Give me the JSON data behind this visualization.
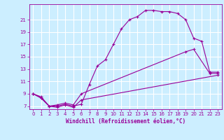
{
  "xlabel": "Windchill (Refroidissement éolien,°C)",
  "background_color": "#cceeff",
  "grid_color": "#ffffff",
  "line_color": "#990099",
  "xlim": [
    -0.5,
    23.5
  ],
  "ylim": [
    6.5,
    23.5
  ],
  "xticks": [
    0,
    1,
    2,
    3,
    4,
    5,
    6,
    7,
    8,
    9,
    10,
    11,
    12,
    13,
    14,
    15,
    16,
    17,
    18,
    19,
    20,
    21,
    22,
    23
  ],
  "yticks": [
    7,
    9,
    11,
    13,
    15,
    17,
    19,
    21
  ],
  "line1_x": [
    0,
    1,
    2,
    3,
    4,
    5,
    6,
    7,
    8,
    9,
    10,
    11,
    12,
    13,
    14,
    15,
    16,
    17,
    18,
    19,
    20,
    21,
    22,
    23
  ],
  "line1_y": [
    9.0,
    8.5,
    7.0,
    7.0,
    7.3,
    7.0,
    7.3,
    10.5,
    13.5,
    14.5,
    17.0,
    19.5,
    21.0,
    21.5,
    22.5,
    22.5,
    22.3,
    22.3,
    22.0,
    21.0,
    18.0,
    17.5,
    12.5,
    12.5
  ],
  "line2_x": [
    0,
    1,
    2,
    3,
    4,
    5,
    6,
    19,
    20,
    22,
    23
  ],
  "line2_y": [
    9.0,
    8.3,
    7.0,
    7.2,
    7.5,
    7.2,
    9.0,
    15.8,
    16.2,
    12.3,
    12.3
  ],
  "line3_x": [
    0,
    1,
    2,
    3,
    4,
    5,
    6,
    23
  ],
  "line3_y": [
    9.0,
    8.3,
    7.0,
    6.8,
    7.2,
    6.8,
    8.0,
    12.0
  ]
}
